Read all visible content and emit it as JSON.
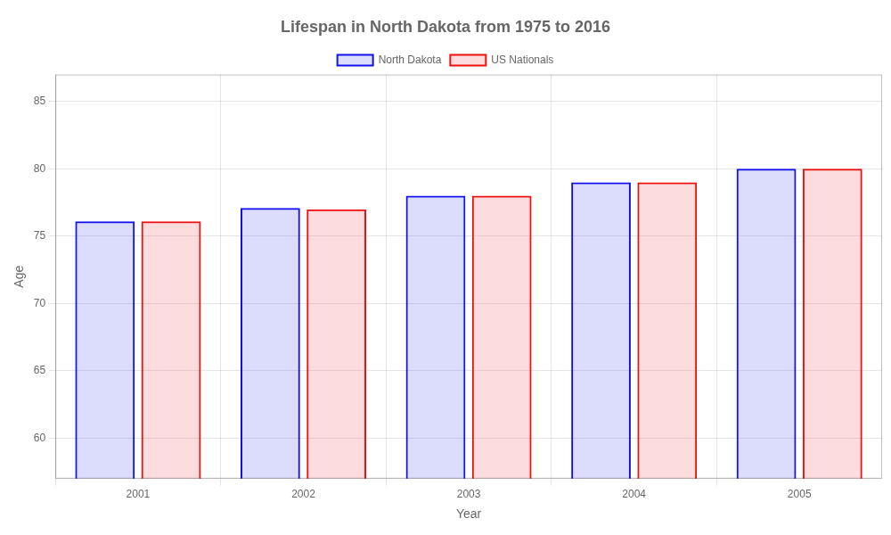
{
  "chart_data": {
    "type": "bar",
    "title": "Lifespan in North Dakota from 1975 to 2016",
    "x_label": "Year",
    "y_label": "Age",
    "categories": [
      "2001",
      "2002",
      "2003",
      "2004",
      "2005"
    ],
    "series": [
      {
        "name": "North Dakota",
        "color": "#1111ee",
        "values": [
          76.1,
          77.1,
          78.0,
          79.0,
          80.0
        ]
      },
      {
        "name": "US Nationals",
        "color": "#ee1111",
        "values": [
          76.1,
          77.0,
          78.0,
          79.0,
          80.0
        ]
      }
    ],
    "ylim": [
      57,
      87
    ],
    "yticks": [
      60,
      65,
      70,
      75,
      80,
      85
    ],
    "grid": true,
    "legend": "top"
  }
}
